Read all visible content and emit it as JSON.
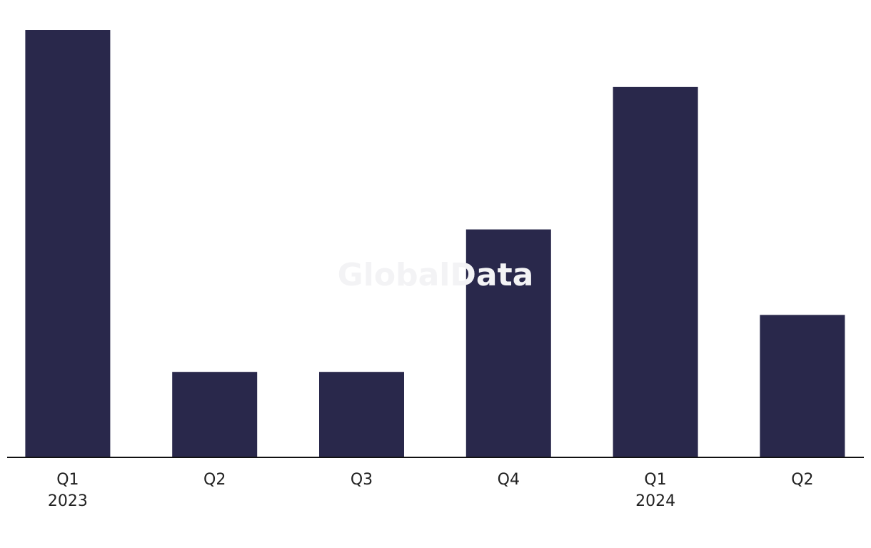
{
  "chart_data": {
    "type": "bar",
    "watermark": "GlobalData",
    "categories": [
      "Q1\n2023",
      "Q2",
      "Q3",
      "Q4",
      "Q1\n2024",
      "Q2"
    ],
    "values": [
      15,
      3,
      3,
      8,
      13,
      5
    ],
    "color": "#29284b"
  }
}
